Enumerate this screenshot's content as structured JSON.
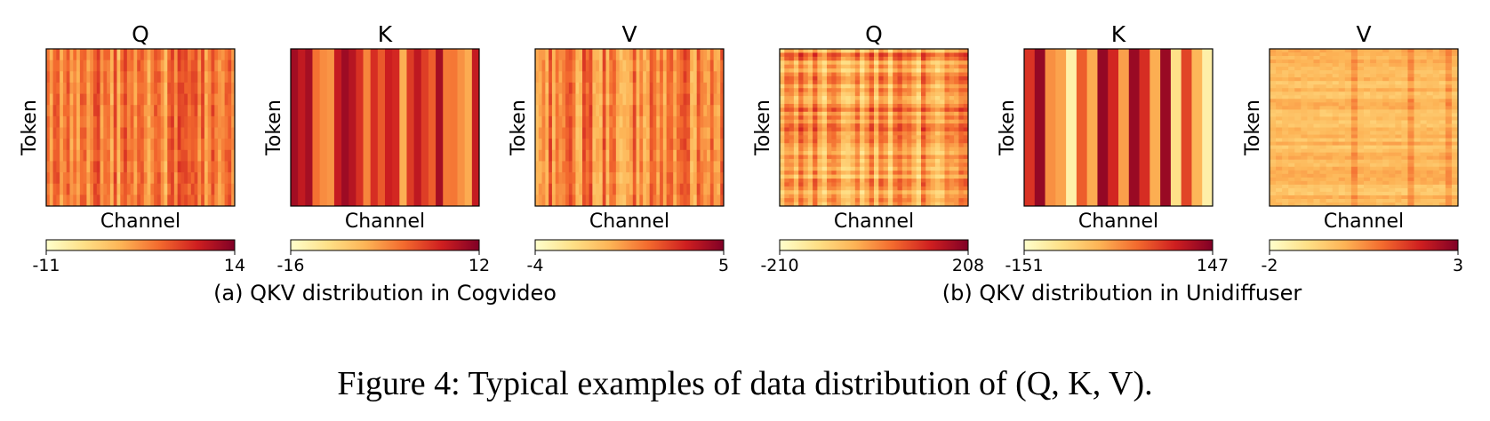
{
  "chart_data": [
    {
      "type": "heatmap",
      "group": "a",
      "title": "Q",
      "xlabel": "Channel",
      "ylabel": "Token",
      "colorbar": {
        "min": -11,
        "max": 14,
        "min_label": "-11",
        "max_label": "14"
      },
      "pattern": "column-stripes",
      "cmap": "YlOrRd"
    },
    {
      "type": "heatmap",
      "group": "a",
      "title": "K",
      "xlabel": "Channel",
      "ylabel": "Token",
      "colorbar": {
        "min": -16,
        "max": 12,
        "min_label": "-16",
        "max_label": "12"
      },
      "pattern": "column-stripes",
      "cmap": "YlOrRd"
    },
    {
      "type": "heatmap",
      "group": "a",
      "title": "V",
      "xlabel": "Channel",
      "ylabel": "Token",
      "colorbar": {
        "min": -4,
        "max": 5,
        "min_label": "-4",
        "max_label": "5"
      },
      "pattern": "column-stripes",
      "cmap": "YlOrRd"
    },
    {
      "type": "heatmap",
      "group": "b",
      "title": "Q",
      "xlabel": "Channel",
      "ylabel": "Token",
      "colorbar": {
        "min": -210,
        "max": 208,
        "min_label": "-210",
        "max_label": "208"
      },
      "pattern": "grid",
      "cmap": "YlOrRd"
    },
    {
      "type": "heatmap",
      "group": "b",
      "title": "K",
      "xlabel": "Channel",
      "ylabel": "Token",
      "colorbar": {
        "min": -151,
        "max": 147,
        "min_label": "-151",
        "max_label": "147"
      },
      "pattern": "column-stripes",
      "cmap": "YlOrRd"
    },
    {
      "type": "heatmap",
      "group": "b",
      "title": "V",
      "xlabel": "Channel",
      "ylabel": "Token",
      "colorbar": {
        "min": -2,
        "max": 3,
        "min_label": "-2",
        "max_label": "3"
      },
      "pattern": "row-stripes",
      "cmap": "YlOrRd"
    }
  ],
  "subcaptions": {
    "a": "(a) QKV distribution in Cogvideo",
    "b": "(b) QKV distribution in Unidiffuser"
  },
  "caption": "Figure 4: Typical examples of data distribution of (Q, K, V).",
  "colors": {
    "cmap_low": "#ffffcc",
    "cmap_mid": "#f29344",
    "cmap_high": "#800026"
  }
}
